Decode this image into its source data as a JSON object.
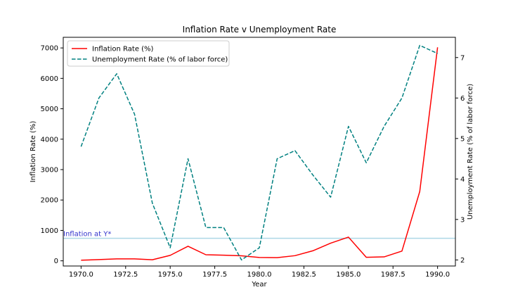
{
  "chart_data": {
    "type": "line",
    "title": "Inflation Rate v Unemployment Rate",
    "xlabel": "Year",
    "ylabel_left": "Inflation Rate (%)",
    "ylabel_right": "Unemployment Rate (% of labor force)",
    "x": [
      1970,
      1971,
      1972,
      1973,
      1974,
      1975,
      1976,
      1977,
      1978,
      1979,
      1980,
      1981,
      1982,
      1983,
      1984,
      1985,
      1986,
      1987,
      1988,
      1989,
      1990
    ],
    "x_ticks": [
      1970.0,
      1972.5,
      1975.0,
      1977.5,
      1980.0,
      1982.5,
      1985.0,
      1987.5,
      1990.0
    ],
    "x_tick_labels": [
      "1970.0",
      "1972.5",
      "1975.0",
      "1977.5",
      "1980.0",
      "1982.5",
      "1985.0",
      "1987.5",
      "1990.0"
    ],
    "xlim": [
      1969,
      1991
    ],
    "ylim_left": [
      -170,
      7350
    ],
    "y_ticks_left": [
      0,
      1000,
      2000,
      3000,
      4000,
      5000,
      6000,
      7000
    ],
    "ylim_right": [
      1.85,
      7.5
    ],
    "y_ticks_right": [
      2,
      3,
      4,
      5,
      6,
      7
    ],
    "grid": false,
    "legend_position": "top-left",
    "series": [
      {
        "name": "Inflation Rate (%)",
        "axis": "left",
        "color": "#ff0000",
        "style": "solid",
        "values": [
          20,
          40,
          65,
          65,
          35,
          180,
          480,
          200,
          185,
          165,
          110,
          105,
          170,
          330,
          580,
          780,
          115,
          130,
          320,
          2280,
          7020
        ]
      },
      {
        "name": "Unemployment Rate (% of labor force)",
        "axis": "right",
        "color": "#008080",
        "style": "dashed",
        "values": [
          4.8,
          6.0,
          6.6,
          5.6,
          3.4,
          2.3,
          4.5,
          2.8,
          2.8,
          2.0,
          2.3,
          4.5,
          4.7,
          4.1,
          3.55,
          5.3,
          4.4,
          5.3,
          6.0,
          7.3,
          7.1
        ]
      }
    ],
    "reference_line": {
      "label": "Inflation at Y*",
      "value": 740,
      "axis": "left",
      "color": "#add8e6",
      "label_color": "#3333cc"
    }
  }
}
